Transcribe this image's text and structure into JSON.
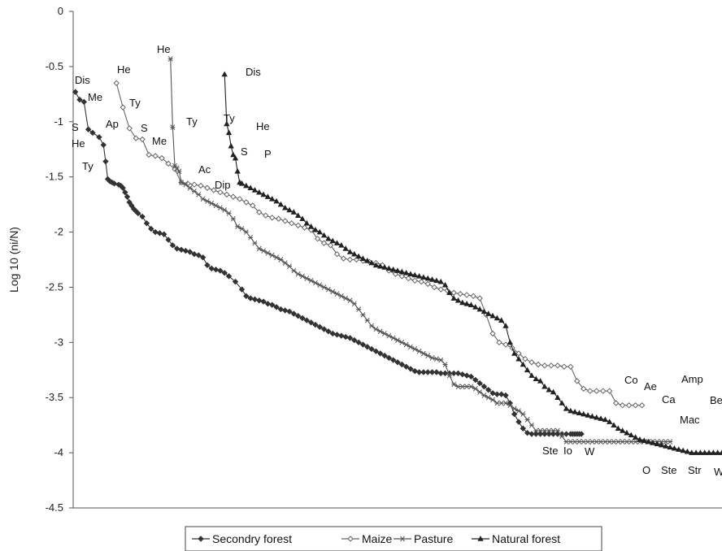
{
  "chart_data": {
    "type": "line",
    "title": "",
    "xlabel": "",
    "ylabel": "Log 10 (ni/N)",
    "ylim": [
      -4.5,
      0
    ],
    "yticks": [
      "0",
      "-0.5",
      "-1",
      "-1.5",
      "-2",
      "-2.5",
      "-3",
      "-3.5",
      "-4",
      "-4.5"
    ],
    "x_axis_ticks": false,
    "grid": false,
    "legend_position": "bottom",
    "series": [
      {
        "name": "Secondry forest",
        "color": "#333333",
        "marker": "diamond",
        "x": [
          1,
          3,
          5,
          7,
          9,
          12,
          14,
          15,
          16,
          17,
          18,
          19,
          21,
          22,
          23,
          24,
          25,
          26,
          27,
          28,
          29,
          30,
          32,
          34,
          36,
          38,
          40,
          42,
          44,
          46,
          48,
          50,
          52,
          54,
          56,
          58,
          60,
          62,
          64,
          66,
          68,
          70,
          72,
          75,
          78,
          80,
          82,
          84,
          86,
          88,
          90,
          92,
          94,
          96,
          98,
          100,
          102,
          104,
          106,
          108,
          110,
          112,
          114,
          116,
          118,
          120,
          122,
          124,
          126,
          128,
          130,
          132,
          134,
          136,
          138,
          140,
          142,
          144,
          146,
          148,
          150,
          152,
          154,
          156,
          158,
          160,
          162,
          164,
          166,
          168,
          170,
          172,
          174,
          176,
          178,
          180,
          182,
          184,
          186,
          188,
          190,
          192,
          194,
          196,
          198,
          200,
          202,
          204,
          206,
          208,
          210,
          212,
          214,
          216,
          218,
          220,
          222,
          224,
          226,
          228,
          230,
          231,
          232,
          233,
          234,
          235
        ],
        "y": [
          -0.73,
          -0.8,
          -0.82,
          -1.07,
          -1.1,
          -1.14,
          -1.21,
          -1.36,
          -1.52,
          -1.54,
          -1.55,
          -1.56,
          -1.57,
          -1.58,
          -1.6,
          -1.64,
          -1.68,
          -1.73,
          -1.76,
          -1.79,
          -1.81,
          -1.83,
          -1.86,
          -1.92,
          -1.97,
          -2.0,
          -2.01,
          -2.02,
          -2.07,
          -2.12,
          -2.15,
          -2.16,
          -2.17,
          -2.18,
          -2.2,
          -2.21,
          -2.23,
          -2.3,
          -2.33,
          -2.34,
          -2.35,
          -2.37,
          -2.4,
          -2.45,
          -2.52,
          -2.58,
          -2.6,
          -2.61,
          -2.62,
          -2.63,
          -2.65,
          -2.66,
          -2.68,
          -2.7,
          -2.71,
          -2.72,
          -2.74,
          -2.76,
          -2.78,
          -2.8,
          -2.82,
          -2.84,
          -2.86,
          -2.88,
          -2.9,
          -2.92,
          -2.93,
          -2.94,
          -2.95,
          -2.96,
          -2.98,
          -3.0,
          -3.02,
          -3.04,
          -3.06,
          -3.08,
          -3.1,
          -3.12,
          -3.14,
          -3.16,
          -3.18,
          -3.2,
          -3.22,
          -3.24,
          -3.26,
          -3.27,
          -3.27,
          -3.27,
          -3.27,
          -3.27,
          -3.28,
          -3.28,
          -3.28,
          -3.28,
          -3.28,
          -3.29,
          -3.3,
          -3.31,
          -3.34,
          -3.37,
          -3.4,
          -3.43,
          -3.46,
          -3.47,
          -3.47,
          -3.48,
          -3.55,
          -3.65,
          -3.72,
          -3.78,
          -3.82,
          -3.83,
          -3.83,
          -3.83,
          -3.83,
          -3.83,
          -3.83,
          -3.83,
          -3.83,
          -3.83,
          -3.83,
          -3.83,
          -3.83,
          -3.83,
          -3.83,
          -3.83
        ]
      },
      {
        "name": "Maize",
        "color": "#666666",
        "marker": "open-diamond",
        "x": [
          20,
          23,
          26,
          29,
          32,
          35,
          38,
          41,
          44,
          47,
          50,
          53,
          56,
          59,
          62,
          65,
          68,
          71,
          74,
          77,
          80,
          83,
          86,
          89,
          92,
          95,
          98,
          101,
          104,
          107,
          110,
          113,
          116,
          119,
          122,
          125,
          128,
          131,
          134,
          137,
          140,
          143,
          146,
          149,
          152,
          155,
          158,
          161,
          164,
          167,
          170,
          173,
          176,
          179,
          182,
          185,
          188,
          191,
          194,
          197,
          200,
          203,
          206,
          209,
          212,
          215,
          218,
          221,
          224,
          227,
          230,
          233,
          236,
          239,
          242,
          245,
          248,
          251,
          254,
          257,
          260,
          263
        ],
        "y": [
          -0.65,
          -0.87,
          -1.06,
          -1.15,
          -1.16,
          -1.3,
          -1.31,
          -1.33,
          -1.38,
          -1.43,
          -1.55,
          -1.56,
          -1.57,
          -1.58,
          -1.6,
          -1.62,
          -1.64,
          -1.66,
          -1.68,
          -1.7,
          -1.73,
          -1.76,
          -1.82,
          -1.85,
          -1.87,
          -1.88,
          -1.9,
          -1.92,
          -1.94,
          -1.96,
          -1.98,
          -2.06,
          -2.1,
          -2.12,
          -2.2,
          -2.24,
          -2.25,
          -2.25,
          -2.26,
          -2.27,
          -2.28,
          -2.3,
          -2.35,
          -2.38,
          -2.4,
          -2.42,
          -2.44,
          -2.45,
          -2.47,
          -2.5,
          -2.52,
          -2.53,
          -2.55,
          -2.56,
          -2.57,
          -2.58,
          -2.6,
          -2.75,
          -2.92,
          -3.0,
          -3.02,
          -3.05,
          -3.1,
          -3.15,
          -3.18,
          -3.2,
          -3.21,
          -3.21,
          -3.21,
          -3.22,
          -3.22,
          -3.35,
          -3.42,
          -3.44,
          -3.44,
          -3.44,
          -3.44,
          -3.55,
          -3.57,
          -3.57,
          -3.57,
          -3.57
        ]
      },
      {
        "name": "Pasture",
        "color": "#555555",
        "marker": "x",
        "x": [
          45,
          46,
          47,
          48,
          49,
          50,
          52,
          54,
          56,
          58,
          60,
          62,
          64,
          66,
          68,
          70,
          72,
          74,
          76,
          78,
          80,
          82,
          84,
          86,
          88,
          90,
          92,
          94,
          96,
          98,
          100,
          102,
          104,
          106,
          108,
          110,
          112,
          114,
          116,
          118,
          120,
          122,
          124,
          126,
          128,
          130,
          132,
          134,
          136,
          138,
          140,
          142,
          144,
          146,
          148,
          150,
          152,
          154,
          156,
          158,
          160,
          162,
          164,
          166,
          168,
          170,
          172,
          174,
          176,
          178,
          180,
          182,
          184,
          186,
          188,
          190,
          192,
          194,
          196,
          198,
          200,
          202,
          204,
          206,
          208,
          210,
          212,
          214,
          216,
          218,
          220,
          222,
          224,
          226,
          228,
          230,
          232,
          234,
          236,
          238,
          240,
          242,
          244,
          246,
          248,
          250,
          252,
          254,
          256,
          258,
          260,
          262,
          264,
          266,
          268,
          270,
          272,
          274,
          276
        ],
        "y": [
          -0.43,
          -1.05,
          -1.4,
          -1.42,
          -1.45,
          -1.55,
          -1.57,
          -1.6,
          -1.63,
          -1.66,
          -1.7,
          -1.72,
          -1.74,
          -1.76,
          -1.78,
          -1.8,
          -1.83,
          -1.88,
          -1.95,
          -1.97,
          -2.0,
          -2.05,
          -2.1,
          -2.15,
          -2.17,
          -2.19,
          -2.21,
          -2.23,
          -2.25,
          -2.28,
          -2.31,
          -2.35,
          -2.38,
          -2.4,
          -2.42,
          -2.44,
          -2.46,
          -2.48,
          -2.5,
          -2.52,
          -2.54,
          -2.56,
          -2.58,
          -2.6,
          -2.62,
          -2.65,
          -2.7,
          -2.75,
          -2.8,
          -2.85,
          -2.88,
          -2.9,
          -2.92,
          -2.94,
          -2.96,
          -2.98,
          -3.0,
          -3.02,
          -3.04,
          -3.06,
          -3.08,
          -3.1,
          -3.12,
          -3.14,
          -3.15,
          -3.16,
          -3.2,
          -3.3,
          -3.38,
          -3.4,
          -3.4,
          -3.4,
          -3.4,
          -3.42,
          -3.45,
          -3.48,
          -3.5,
          -3.52,
          -3.55,
          -3.55,
          -3.55,
          -3.57,
          -3.6,
          -3.62,
          -3.65,
          -3.7,
          -3.75,
          -3.8,
          -3.8,
          -3.8,
          -3.8,
          -3.8,
          -3.8,
          -3.85,
          -3.9,
          -3.9,
          -3.9,
          -3.9,
          -3.9,
          -3.9,
          -3.9,
          -3.9,
          -3.9,
          -3.9,
          -3.9,
          -3.9,
          -3.9,
          -3.9,
          -3.9,
          -3.9,
          -3.9,
          -3.9,
          -3.9,
          -3.9,
          -3.9,
          -3.9,
          -3.9,
          -3.9,
          -3.9
        ]
      },
      {
        "name": "Natural forest",
        "color": "#222222",
        "marker": "triangle",
        "x": [
          70,
          71,
          72,
          73,
          74,
          75,
          76,
          77,
          78,
          80,
          82,
          84,
          86,
          88,
          90,
          92,
          94,
          96,
          98,
          100,
          102,
          104,
          106,
          108,
          110,
          112,
          114,
          116,
          118,
          120,
          122,
          124,
          126,
          128,
          130,
          132,
          134,
          136,
          138,
          140,
          142,
          144,
          146,
          148,
          150,
          152,
          154,
          156,
          158,
          160,
          162,
          164,
          166,
          168,
          170,
          172,
          174,
          176,
          178,
          180,
          182,
          184,
          186,
          188,
          190,
          192,
          194,
          196,
          198,
          200,
          202,
          204,
          206,
          208,
          210,
          212,
          214,
          216,
          218,
          220,
          222,
          224,
          226,
          228,
          230,
          232,
          234,
          236,
          238,
          240,
          242,
          244,
          246,
          248,
          250,
          252,
          254,
          256,
          258,
          260,
          262,
          264,
          266,
          268,
          270,
          272,
          274,
          276,
          278,
          280,
          282,
          284,
          286,
          288,
          290,
          292,
          294,
          296,
          298,
          300
        ],
        "y": [
          -0.57,
          -1.02,
          -1.1,
          -1.22,
          -1.3,
          -1.33,
          -1.45,
          -1.55,
          -1.56,
          -1.58,
          -1.6,
          -1.62,
          -1.64,
          -1.66,
          -1.68,
          -1.7,
          -1.72,
          -1.75,
          -1.78,
          -1.8,
          -1.82,
          -1.85,
          -1.88,
          -1.92,
          -1.95,
          -1.98,
          -2.0,
          -2.03,
          -2.06,
          -2.08,
          -2.1,
          -2.12,
          -2.15,
          -2.18,
          -2.2,
          -2.22,
          -2.24,
          -2.26,
          -2.28,
          -2.3,
          -2.31,
          -2.32,
          -2.33,
          -2.34,
          -2.35,
          -2.36,
          -2.37,
          -2.38,
          -2.39,
          -2.4,
          -2.41,
          -2.42,
          -2.43,
          -2.44,
          -2.45,
          -2.48,
          -2.55,
          -2.6,
          -2.62,
          -2.64,
          -2.65,
          -2.66,
          -2.68,
          -2.7,
          -2.72,
          -2.74,
          -2.76,
          -2.78,
          -2.8,
          -2.85,
          -3.0,
          -3.1,
          -3.15,
          -3.2,
          -3.25,
          -3.3,
          -3.33,
          -3.35,
          -3.4,
          -3.43,
          -3.45,
          -3.5,
          -3.55,
          -3.6,
          -3.62,
          -3.63,
          -3.64,
          -3.65,
          -3.66,
          -3.67,
          -3.68,
          -3.69,
          -3.7,
          -3.72,
          -3.75,
          -3.78,
          -3.8,
          -3.82,
          -3.84,
          -3.86,
          -3.88,
          -3.89,
          -3.9,
          -3.91,
          -3.92,
          -3.93,
          -3.94,
          -3.95,
          -3.96,
          -3.97,
          -3.98,
          -3.99,
          -4.0,
          -4.0,
          -4.0,
          -4.0,
          -4.0,
          -4.0,
          -4.0,
          -4.0
        ]
      }
    ],
    "annotations": [
      {
        "text": "Dis"
      },
      {
        "text": "Me"
      },
      {
        "text": "S"
      },
      {
        "text": "He"
      },
      {
        "text": "Ty"
      },
      {
        "text": "He"
      },
      {
        "text": "Ty"
      },
      {
        "text": "Ap"
      },
      {
        "text": "S"
      },
      {
        "text": "Me"
      },
      {
        "text": "He"
      },
      {
        "text": "Ty"
      },
      {
        "text": "Ac"
      },
      {
        "text": "Dip"
      },
      {
        "text": "Dis"
      },
      {
        "text": "Ty"
      },
      {
        "text": "He"
      },
      {
        "text": "S"
      },
      {
        "text": "P"
      },
      {
        "text": "Co"
      },
      {
        "text": "Ae"
      },
      {
        "text": "Ca"
      },
      {
        "text": "Amp"
      },
      {
        "text": "Be"
      },
      {
        "text": "Mac"
      },
      {
        "text": "Ste"
      },
      {
        "text": "Io"
      },
      {
        "text": "W"
      },
      {
        "text": "O"
      },
      {
        "text": "Ste"
      },
      {
        "text": "Str"
      },
      {
        "text": "W"
      }
    ]
  }
}
